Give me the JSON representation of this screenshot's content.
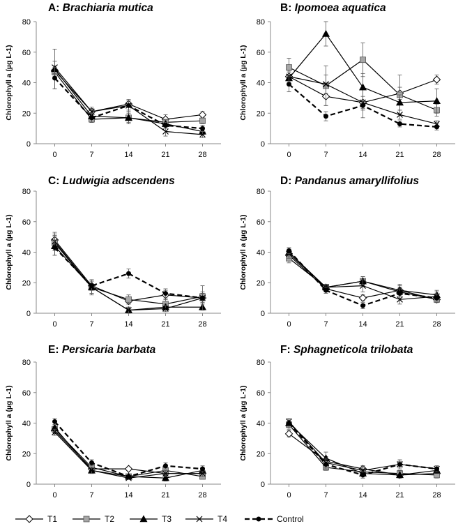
{
  "chart_data": [
    {
      "type": "line",
      "title_letter": "A: ",
      "title_name": "Brachiaria mutica",
      "ylabel": "Chlorophyll a (µg L-1)",
      "x": [
        0,
        7,
        14,
        21,
        28
      ],
      "ylim": [
        0,
        80
      ],
      "yticks": [
        0,
        20,
        40,
        60,
        80
      ],
      "series": [
        {
          "name": "T1",
          "values": [
            48,
            21,
            26,
            16,
            19
          ],
          "err": [
            3,
            2,
            2,
            3,
            2
          ]
        },
        {
          "name": "T2",
          "values": [
            47,
            16,
            17,
            14,
            15
          ],
          "err": [
            3,
            2,
            3,
            2,
            2
          ]
        },
        {
          "name": "T3",
          "values": [
            49,
            18,
            17,
            13,
            8
          ],
          "err": [
            13,
            4,
            4,
            2,
            2
          ]
        },
        {
          "name": "T4",
          "values": [
            50,
            21,
            25,
            8,
            6
          ],
          "err": [
            4,
            3,
            4,
            3,
            2
          ]
        },
        {
          "name": "Control",
          "values": [
            43,
            17,
            25,
            12,
            10
          ],
          "err": [
            7,
            3,
            3,
            2,
            2
          ]
        }
      ]
    },
    {
      "type": "line",
      "title_letter": "B: ",
      "title_name": "Ipomoea aquatica",
      "ylabel": "Chlorophyll a (µg L-1)",
      "x": [
        0,
        7,
        14,
        21,
        28
      ],
      "ylim": [
        0,
        80
      ],
      "yticks": [
        0,
        20,
        40,
        60,
        80
      ],
      "series": [
        {
          "name": "T1",
          "values": [
            44,
            31,
            27,
            33,
            42
          ],
          "err": [
            4,
            6,
            10,
            4,
            3
          ]
        },
        {
          "name": "T2",
          "values": [
            50,
            38,
            55,
            32,
            22
          ],
          "err": [
            6,
            13,
            11,
            13,
            4
          ]
        },
        {
          "name": "T3",
          "values": [
            43,
            72,
            37,
            27,
            28
          ],
          "err": [
            4,
            8,
            9,
            5,
            8
          ]
        },
        {
          "name": "T4",
          "values": [
            44,
            39,
            27,
            19,
            13
          ],
          "err": [
            3,
            6,
            4,
            3,
            2
          ]
        },
        {
          "name": "Control",
          "values": [
            39,
            18,
            25,
            13,
            11
          ],
          "err": [
            5,
            3,
            3,
            2,
            2
          ]
        }
      ]
    },
    {
      "type": "line",
      "title_letter": "C: ",
      "title_name": "Ludwigia adscendens",
      "ylabel": "Chlorophyll a (µg L-1)",
      "x": [
        0,
        7,
        14,
        21,
        28
      ],
      "ylim": [
        0,
        80
      ],
      "yticks": [
        0,
        20,
        40,
        60,
        80
      ],
      "series": [
        {
          "name": "T1",
          "values": [
            48,
            18,
            8,
            12,
            10
          ],
          "err": [
            4,
            3,
            2,
            3,
            3
          ]
        },
        {
          "name": "T2",
          "values": [
            46,
            17,
            9,
            6,
            11
          ],
          "err": [
            5,
            4,
            3,
            3,
            3
          ]
        },
        {
          "name": "T3",
          "values": [
            44,
            17,
            2,
            4,
            4
          ],
          "err": [
            6,
            5,
            2,
            2,
            2
          ]
        },
        {
          "name": "T4",
          "values": [
            47,
            17,
            2,
            3,
            10
          ],
          "err": [
            6,
            4,
            2,
            2,
            8
          ]
        },
        {
          "name": "Control",
          "values": [
            43,
            18,
            26,
            13,
            10
          ],
          "err": [
            5,
            3,
            3,
            3,
            3
          ]
        }
      ]
    },
    {
      "type": "line",
      "title_letter": "D: ",
      "title_name": "Pandanus amaryllifolius",
      "ylabel": "Chlorophyll a (µg L-1)",
      "x": [
        0,
        7,
        14,
        21,
        28
      ],
      "ylim": [
        0,
        80
      ],
      "yticks": [
        0,
        20,
        40,
        60,
        80
      ],
      "series": [
        {
          "name": "T1",
          "values": [
            38,
            16,
            10,
            15,
            9
          ],
          "err": [
            3,
            2,
            2,
            3,
            2
          ]
        },
        {
          "name": "T2",
          "values": [
            36,
            17,
            21,
            14,
            9
          ],
          "err": [
            3,
            2,
            3,
            3,
            2
          ]
        },
        {
          "name": "T3",
          "values": [
            40,
            17,
            21,
            15,
            12
          ],
          "err": [
            3,
            2,
            3,
            4,
            3
          ]
        },
        {
          "name": "T4",
          "values": [
            39,
            17,
            18,
            9,
            11
          ],
          "err": [
            3,
            2,
            4,
            3,
            3
          ]
        },
        {
          "name": "Control",
          "values": [
            41,
            15,
            5,
            13,
            10
          ],
          "err": [
            2,
            2,
            2,
            3,
            2
          ]
        }
      ]
    },
    {
      "type": "line",
      "title_letter": "E: ",
      "title_name": "Persicaria barbata",
      "ylabel": "Chlorophyll a (µg L-1)",
      "x": [
        0,
        7,
        14,
        21,
        28
      ],
      "ylim": [
        0,
        80
      ],
      "yticks": [
        0,
        20,
        40,
        60,
        80
      ],
      "series": [
        {
          "name": "T1",
          "values": [
            35,
            10,
            10,
            7,
            7
          ],
          "err": [
            2,
            2,
            1,
            2,
            2
          ]
        },
        {
          "name": "T2",
          "values": [
            36,
            11,
            5,
            9,
            5
          ],
          "err": [
            2,
            2,
            1,
            2,
            1
          ]
        },
        {
          "name": "T3",
          "values": [
            37,
            9,
            5,
            4,
            9
          ],
          "err": [
            2,
            2,
            1,
            2,
            2
          ]
        },
        {
          "name": "T4",
          "values": [
            34,
            9,
            4,
            7,
            7
          ],
          "err": [
            2,
            2,
            1,
            2,
            2
          ]
        },
        {
          "name": "Control",
          "values": [
            41,
            14,
            5,
            12,
            10
          ],
          "err": [
            2,
            2,
            1,
            2,
            2
          ]
        }
      ]
    },
    {
      "type": "line",
      "title_letter": "F: ",
      "title_name": "Sphagneticola trilobata",
      "ylabel": "Chlorophyll a (µg L-1)",
      "x": [
        0,
        7,
        14,
        21,
        28
      ],
      "ylim": [
        0,
        80
      ],
      "yticks": [
        0,
        20,
        40,
        60,
        80
      ],
      "series": [
        {
          "name": "T1",
          "values": [
            33,
            15,
            10,
            6,
            7
          ],
          "err": [
            2,
            3,
            2,
            2,
            2
          ]
        },
        {
          "name": "T2",
          "values": [
            39,
            11,
            8,
            7,
            6
          ],
          "err": [
            3,
            2,
            3,
            2,
            2
          ]
        },
        {
          "name": "T3",
          "values": [
            40,
            17,
            7,
            6,
            9
          ],
          "err": [
            3,
            4,
            3,
            2,
            2
          ]
        },
        {
          "name": "T4",
          "values": [
            41,
            14,
            9,
            13,
            10
          ],
          "err": [
            2,
            3,
            3,
            3,
            2
          ]
        },
        {
          "name": "Control",
          "values": [
            40,
            13,
            6,
            13,
            10
          ],
          "err": [
            2,
            3,
            2,
            2,
            2
          ]
        }
      ]
    }
  ],
  "legend": [
    {
      "name": "T1",
      "marker": "diamond-open",
      "dash": false
    },
    {
      "name": "T2",
      "marker": "square-gray",
      "dash": false
    },
    {
      "name": "T3",
      "marker": "triangle-filled",
      "dash": false
    },
    {
      "name": "T4",
      "marker": "x-cross",
      "dash": false
    },
    {
      "name": "Control",
      "marker": "circle-filled",
      "dash": true
    }
  ],
  "colors": {
    "line": "#000000",
    "t2_fill": "#a6a6a6",
    "errorbar": "#555555"
  }
}
